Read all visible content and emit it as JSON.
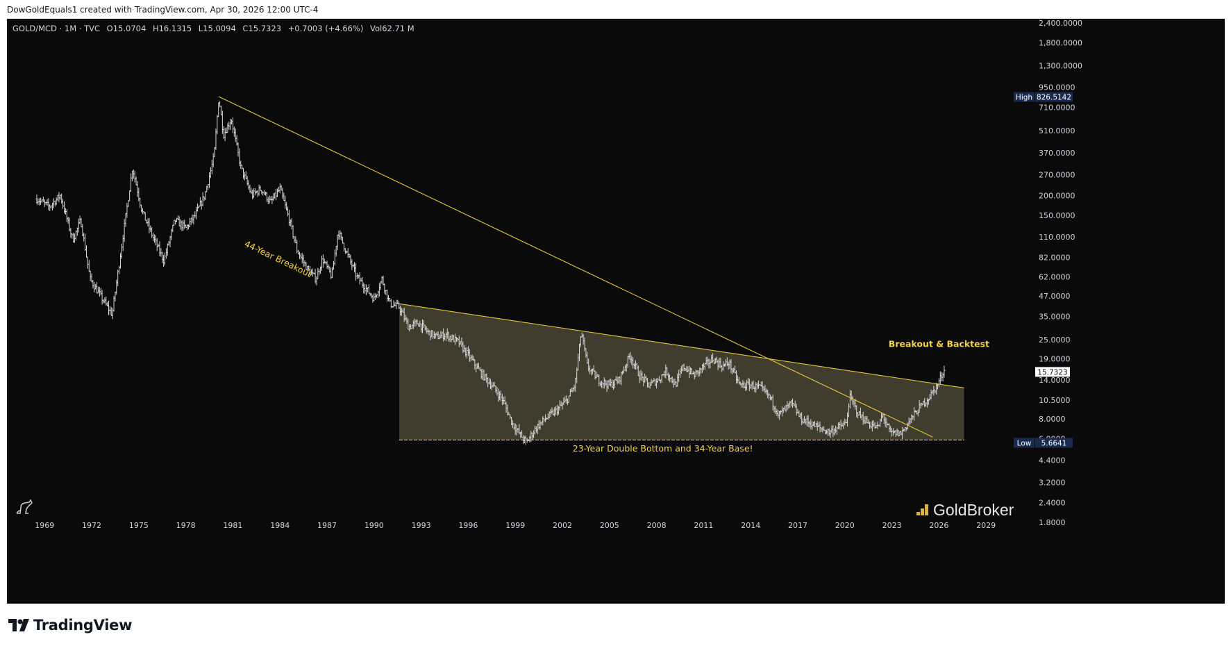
{
  "attribution": "DowGoldEquals1 created with TradingView.com, Apr 30, 2026 12:00 UTC-4",
  "legend": {
    "symbol": "GOLD/MCD · 1M · TVC",
    "open": "O15.0704",
    "high": "H16.1315",
    "low": "L15.0094",
    "close": "C15.7323",
    "change": "+0.7003 (+4.66%)",
    "volume": "Vol62.71 M"
  },
  "footer": {
    "brand": "TradingView"
  },
  "watermark": "GoldBroker",
  "colors": {
    "background": "#0a0a0a",
    "bars": "#d8d8d8",
    "trendline": "#e3c93a",
    "annotation": "#f2d340",
    "base_fill": "#4a4636",
    "label_box": "#1a2a4f"
  },
  "chart_data": {
    "type": "bar",
    "interval": "1M",
    "yscale": "log",
    "ylim": [
      1.55,
      2600
    ],
    "xlim": [
      1966.6,
      2032
    ],
    "x_ticks": [
      "1969",
      "1972",
      "1975",
      "1978",
      "1981",
      "1984",
      "1987",
      "1990",
      "1993",
      "1996",
      "1999",
      "2002",
      "2005",
      "2008",
      "2011",
      "2014",
      "2017",
      "2020",
      "2023",
      "2026",
      "2029"
    ],
    "y_ticks": [
      "1,800.0000",
      "1,300.0000",
      "950.0000",
      "710.0000",
      "510.0000",
      "370.0000",
      "270.0000",
      "200.0000",
      "150.0000",
      "110.0000",
      "82.0000",
      "62.0000",
      "47.0000",
      "35.0000",
      "25.0000",
      "19.0000",
      "14.0000",
      "10.5000",
      "8.0000",
      "6.0000",
      "4.4000",
      "3.2000",
      "2.4000",
      "1.8000"
    ],
    "y_top_partial": "2,400.0000",
    "labels": {
      "high": {
        "label": "High",
        "value": "826.5142",
        "y": 826.5142
      },
      "low": {
        "label": "Low",
        "value": "5.6641",
        "y": 5.6641
      },
      "last": {
        "value": "15.7323",
        "y": 15.7323
      }
    },
    "price_path": [
      [
        1968.5,
        190
      ],
      [
        1969.3,
        170
      ],
      [
        1970.0,
        200
      ],
      [
        1970.8,
        105
      ],
      [
        1971.3,
        140
      ],
      [
        1971.9,
        60
      ],
      [
        1972.5,
        48
      ],
      [
        1973.3,
        36
      ],
      [
        1973.9,
        95
      ],
      [
        1974.6,
        300
      ],
      [
        1975.2,
        160
      ],
      [
        1975.9,
        110
      ],
      [
        1976.6,
        78
      ],
      [
        1977.3,
        140
      ],
      [
        1978.0,
        125
      ],
      [
        1978.6,
        150
      ],
      [
        1979.2,
        200
      ],
      [
        1979.8,
        350
      ],
      [
        1980.1,
        826
      ],
      [
        1980.4,
        480
      ],
      [
        1980.9,
        600
      ],
      [
        1981.5,
        300
      ],
      [
        1982.2,
        200
      ],
      [
        1982.8,
        220
      ],
      [
        1983.4,
        180
      ],
      [
        1984.0,
        220
      ],
      [
        1984.6,
        140
      ],
      [
        1985.1,
        90
      ],
      [
        1985.8,
        68
      ],
      [
        1986.3,
        60
      ],
      [
        1986.7,
        80
      ],
      [
        1987.3,
        62
      ],
      [
        1987.7,
        120
      ],
      [
        1988.3,
        85
      ],
      [
        1988.9,
        62
      ],
      [
        1989.5,
        52
      ],
      [
        1990.0,
        45
      ],
      [
        1990.5,
        60
      ],
      [
        1991.0,
        42
      ],
      [
        1991.6,
        40
      ],
      [
        1992.2,
        30
      ],
      [
        1992.8,
        32
      ],
      [
        1993.4,
        28
      ],
      [
        1994.0,
        26
      ],
      [
        1994.6,
        27
      ],
      [
        1995.4,
        24
      ],
      [
        1996.0,
        20
      ],
      [
        1996.8,
        15.5
      ],
      [
        1997.5,
        13
      ],
      [
        1998.2,
        10.5
      ],
      [
        1998.8,
        7.5
      ],
      [
        1999.4,
        6.2
      ],
      [
        1999.7,
        5.66
      ],
      [
        2000.3,
        7
      ],
      [
        2000.9,
        8
      ],
      [
        2001.6,
        9
      ],
      [
        2002.3,
        10.5
      ],
      [
        2002.8,
        13
      ],
      [
        2003.2,
        28
      ],
      [
        2003.6,
        17
      ],
      [
        2004.3,
        14
      ],
      [
        2005.0,
        13
      ],
      [
        2005.6,
        14
      ],
      [
        2006.3,
        20
      ],
      [
        2006.9,
        15
      ],
      [
        2007.5,
        13
      ],
      [
        2008.1,
        14
      ],
      [
        2008.6,
        16
      ],
      [
        2009.2,
        13
      ],
      [
        2009.7,
        17
      ],
      [
        2010.4,
        15
      ],
      [
        2011.0,
        17
      ],
      [
        2011.6,
        19
      ],
      [
        2012.2,
        17
      ],
      [
        2012.6,
        18
      ],
      [
        2013.3,
        13
      ],
      [
        2014.0,
        13
      ],
      [
        2014.6,
        12.5
      ],
      [
        2015.2,
        11
      ],
      [
        2015.8,
        8.5
      ],
      [
        2016.6,
        10
      ],
      [
        2017.2,
        8
      ],
      [
        2017.8,
        7.5
      ],
      [
        2018.4,
        7
      ],
      [
        2019.0,
        6.6
      ],
      [
        2019.5,
        7
      ],
      [
        2020.1,
        7.5
      ],
      [
        2020.3,
        11
      ],
      [
        2020.9,
        8.5
      ],
      [
        2021.5,
        7.5
      ],
      [
        2022.1,
        7
      ],
      [
        2022.4,
        8.5
      ],
      [
        2022.9,
        6.5
      ],
      [
        2023.6,
        6.5
      ],
      [
        2024.2,
        8
      ],
      [
        2024.8,
        9.5
      ],
      [
        2025.4,
        11
      ],
      [
        2025.9,
        13
      ],
      [
        2026.3,
        16.1
      ],
      [
        2026.4,
        15.7
      ]
    ],
    "annotations": [
      {
        "text": "44-Year Breakout",
        "x": 1983.8,
        "y": 77
      },
      {
        "text": "Breakout & Backtest",
        "x": 2026.0,
        "y": 22.5
      },
      {
        "text": "23-Year Double Bottom and 34-Year Base!",
        "x": 2008.4,
        "y": 5.0
      }
    ],
    "trendlines": [
      {
        "name": "44-year-breakout-line",
        "from": [
          1980.1,
          830
        ],
        "to": [
          2025.6,
          6.15
        ]
      },
      {
        "name": "base-upper-line",
        "from": [
          1991.6,
          42
        ],
        "to": [
          2027.6,
          12.5
        ]
      },
      {
        "name": "base-support-line",
        "from": [
          1991.6,
          5.9
        ],
        "to": [
          2027.6,
          5.9
        ]
      }
    ],
    "base_zone": {
      "x_start": 1991.6,
      "x_end": 2027.6
    }
  }
}
